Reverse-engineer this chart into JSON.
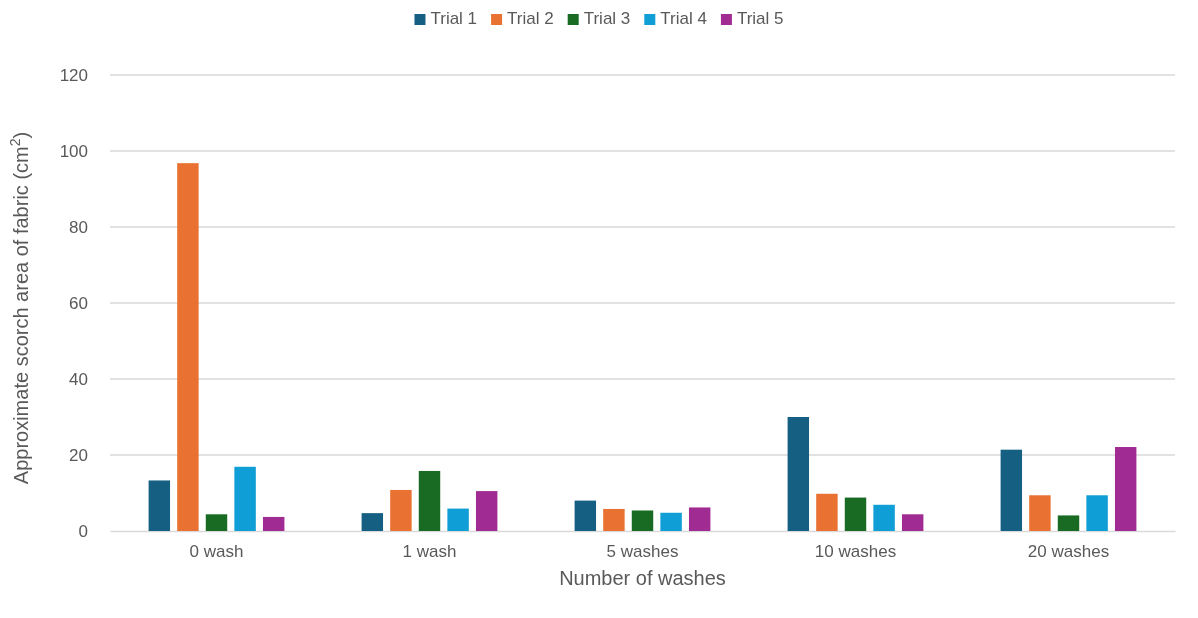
{
  "chart_data": {
    "type": "bar",
    "xlabel": "Number of washes",
    "ylabel": "Approximate scorch area of fabric (cm$^{2}$)",
    "categories": [
      "0 wash",
      "1 wash",
      "5 washes",
      "10 washes",
      "20 washes"
    ],
    "series": [
      {
        "name": "Trial 1",
        "color": "#156082",
        "values": [
          13.3,
          4.7,
          8.0,
          30.0,
          21.4
        ]
      },
      {
        "name": "Trial 2",
        "color": "#e97132",
        "values": [
          96.8,
          10.8,
          5.8,
          9.8,
          9.4
        ]
      },
      {
        "name": "Trial 3",
        "color": "#196b24",
        "values": [
          4.4,
          15.8,
          5.4,
          8.8,
          4.1
        ]
      },
      {
        "name": "Trial 4",
        "color": "#0f9ed5",
        "values": [
          16.9,
          5.9,
          4.8,
          6.9,
          9.4
        ]
      },
      {
        "name": "Trial 5",
        "color": "#a02b93",
        "values": [
          3.7,
          10.5,
          6.2,
          4.4,
          22.1
        ]
      }
    ],
    "ylim": [
      0,
      120
    ],
    "yticks": [
      0,
      20,
      40,
      60,
      80,
      100,
      120
    ],
    "grid": "y",
    "legend": "top"
  }
}
